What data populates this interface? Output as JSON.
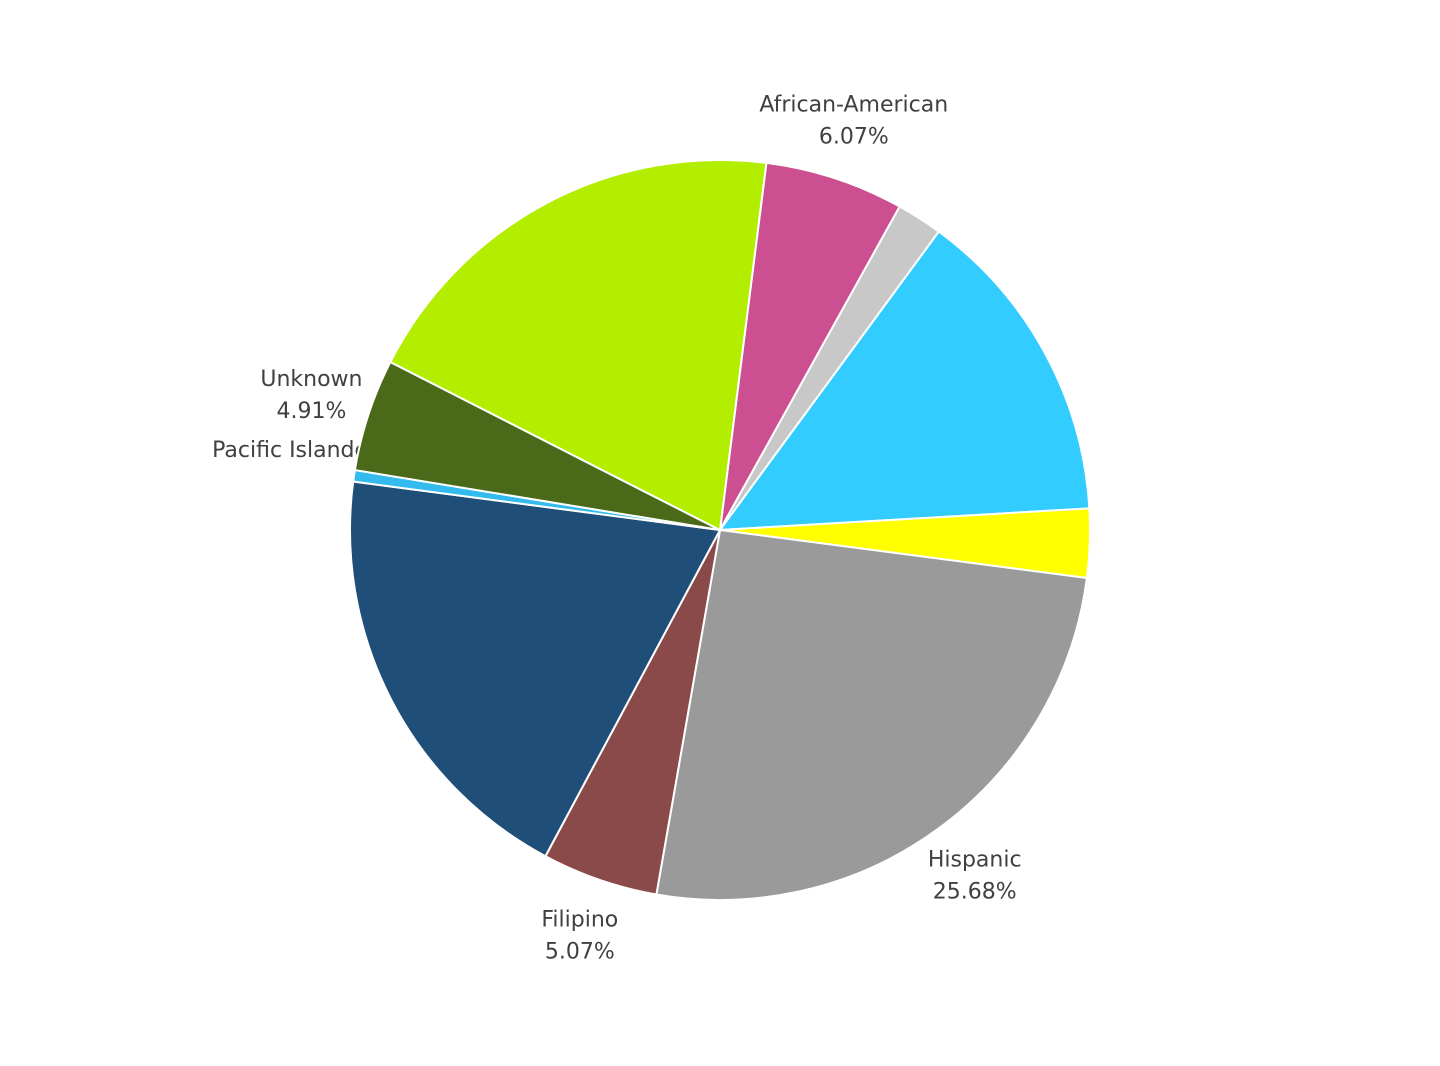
{
  "chart_data": {
    "type": "pie",
    "categories": [
      "African-American",
      null,
      null,
      null,
      "Hispanic",
      "Filipino",
      null,
      "Pacific Islander",
      "Unknown",
      null
    ],
    "values": [
      6.07,
      2,
      14,
      3,
      25.68,
      5.07,
      19.27,
      0.5,
      4.91,
      19.5
    ],
    "value_labels": [
      "6.07%",
      null,
      null,
      null,
      "25.68%",
      "5.07%",
      null,
      null,
      "4.91%",
      null
    ],
    "colors": [
      "#cc4f91",
      "#c8c8c8",
      "#33ccff",
      "#ffff00",
      "#9a9a9a",
      "#8b4a4a",
      "#1f4e79",
      "#33bbee",
      "#4a6a1a",
      "#b3ee00"
    ]
  }
}
